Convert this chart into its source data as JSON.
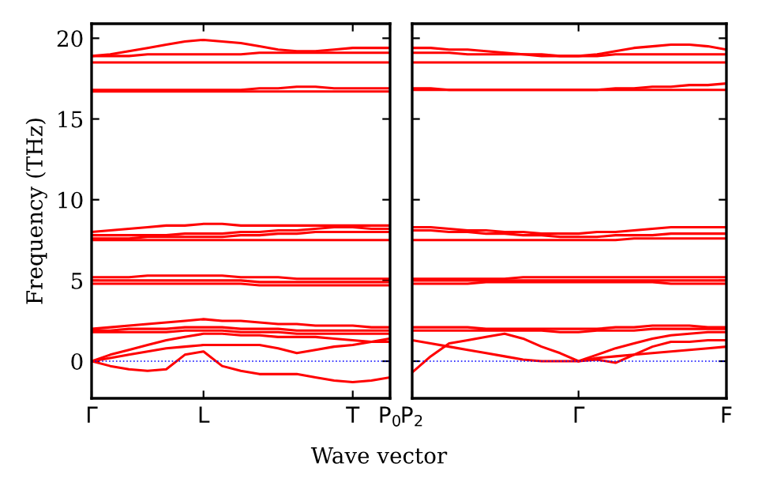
{
  "chart_data": [
    {
      "type": "line",
      "ylabel": "Frequency (THz)",
      "xlabel": "Wave vector",
      "ylim": [
        -2.3,
        20.9
      ],
      "yticks": [
        0,
        5,
        10,
        15,
        20
      ],
      "line_style": "solid",
      "categories": [
        "Γ",
        null,
        null,
        null,
        null,
        null,
        "L",
        null,
        null,
        null,
        null,
        null,
        null,
        null,
        "T",
        null,
        "P$_{0}$"
      ],
      "ref_lines": [
        {
          "axis": "y",
          "value": 0,
          "color": "#0000ff",
          "line_style": "dotted"
        }
      ],
      "series": [
        {
          "color": "#ff0000",
          "values": [
            18.9,
            19.0,
            19.2,
            19.4,
            19.6,
            19.8,
            19.9,
            19.8,
            19.7,
            19.5,
            19.3,
            19.2,
            19.2,
            19.3,
            19.4,
            19.4,
            19.4
          ]
        },
        {
          "color": "#ff0000",
          "values": [
            18.9,
            18.9,
            18.9,
            19.0,
            19.0,
            19.0,
            19.0,
            19.0,
            19.0,
            19.1,
            19.1,
            19.1,
            19.1,
            19.1,
            19.1,
            19.1,
            19.1
          ]
        },
        {
          "color": "#ff0000",
          "values": [
            18.5,
            18.5,
            18.5,
            18.5,
            18.5,
            18.5,
            18.5,
            18.5,
            18.5,
            18.5,
            18.5,
            18.5,
            18.5,
            18.5,
            18.5,
            18.5,
            18.5
          ]
        },
        {
          "color": "#ff0000",
          "values": [
            16.8,
            16.8,
            16.8,
            16.8,
            16.8,
            16.8,
            16.8,
            16.8,
            16.8,
            16.9,
            16.9,
            17.0,
            17.0,
            16.9,
            16.9,
            16.9,
            16.9
          ]
        },
        {
          "color": "#ff0000",
          "values": [
            16.7,
            16.7,
            16.7,
            16.7,
            16.7,
            16.7,
            16.7,
            16.7,
            16.7,
            16.7,
            16.7,
            16.7,
            16.7,
            16.7,
            16.7,
            16.7,
            16.7
          ]
        },
        {
          "color": "#ff0000",
          "values": [
            8.0,
            8.1,
            8.2,
            8.3,
            8.4,
            8.4,
            8.5,
            8.5,
            8.4,
            8.4,
            8.4,
            8.4,
            8.4,
            8.4,
            8.4,
            8.4,
            8.4
          ]
        },
        {
          "color": "#ff0000",
          "values": [
            7.8,
            7.8,
            7.8,
            7.8,
            7.8,
            7.9,
            7.9,
            7.9,
            8.0,
            8.0,
            8.1,
            8.1,
            8.2,
            8.3,
            8.3,
            8.2,
            8.2
          ]
        },
        {
          "color": "#ff0000",
          "values": [
            7.6,
            7.6,
            7.6,
            7.7,
            7.7,
            7.7,
            7.7,
            7.7,
            7.8,
            7.8,
            7.9,
            7.9,
            8.0,
            8.0,
            8.0,
            8.0,
            8.0
          ]
        },
        {
          "color": "#ff0000",
          "values": [
            7.5,
            7.5,
            7.5,
            7.5,
            7.5,
            7.5,
            7.5,
            7.5,
            7.5,
            7.5,
            7.5,
            7.5,
            7.5,
            7.5,
            7.5,
            7.5,
            7.5
          ]
        },
        {
          "color": "#ff0000",
          "values": [
            5.2,
            5.2,
            5.2,
            5.3,
            5.3,
            5.3,
            5.3,
            5.3,
            5.2,
            5.2,
            5.2,
            5.1,
            5.1,
            5.1,
            5.1,
            5.1,
            5.1
          ]
        },
        {
          "color": "#ff0000",
          "values": [
            5.0,
            5.0,
            5.0,
            5.0,
            5.0,
            5.0,
            5.0,
            5.0,
            5.0,
            4.9,
            4.9,
            4.9,
            4.9,
            4.9,
            4.9,
            4.9,
            4.9
          ]
        },
        {
          "color": "#ff0000",
          "values": [
            4.8,
            4.8,
            4.8,
            4.8,
            4.8,
            4.8,
            4.8,
            4.8,
            4.8,
            4.7,
            4.7,
            4.7,
            4.7,
            4.7,
            4.7,
            4.7,
            4.7
          ]
        },
        {
          "color": "#ff0000",
          "values": [
            2.0,
            2.1,
            2.2,
            2.3,
            2.4,
            2.5,
            2.6,
            2.5,
            2.5,
            2.4,
            2.3,
            2.3,
            2.2,
            2.2,
            2.2,
            2.1,
            2.1
          ]
        },
        {
          "color": "#ff0000",
          "values": [
            1.9,
            1.9,
            2.0,
            2.0,
            2.0,
            2.1,
            2.1,
            2.1,
            2.0,
            2.0,
            2.0,
            1.9,
            1.9,
            1.9,
            1.9,
            1.9,
            1.9
          ]
        },
        {
          "color": "#ff0000",
          "values": [
            1.8,
            1.8,
            1.8,
            1.8,
            1.8,
            1.9,
            1.9,
            1.9,
            1.8,
            1.8,
            1.8,
            1.7,
            1.7,
            1.7,
            1.7,
            1.7,
            1.7
          ]
        },
        {
          "color": "#ff0000",
          "values": [
            0,
            0.4,
            0.7,
            1.0,
            1.3,
            1.5,
            1.7,
            1.7,
            1.6,
            1.6,
            1.5,
            1.5,
            1.5,
            1.4,
            1.3,
            1.2,
            1.2
          ]
        },
        {
          "color": "#ff0000",
          "values": [
            0,
            0.2,
            0.4,
            0.6,
            0.8,
            0.9,
            1.0,
            1.0,
            1.0,
            1.0,
            0.8,
            0.5,
            0.7,
            0.9,
            1.0,
            1.2,
            1.4
          ]
        },
        {
          "color": "#ff0000",
          "values": [
            0,
            -0.3,
            -0.5,
            -0.6,
            -0.5,
            0.4,
            0.6,
            -0.3,
            -0.6,
            -0.8,
            -0.8,
            -0.8,
            -1.0,
            -1.2,
            -1.3,
            -1.2,
            -1.0
          ]
        }
      ]
    },
    {
      "type": "line",
      "ylim": [
        -2.3,
        20.9
      ],
      "yticks": [
        {
          "value": 0,
          "label": null
        },
        {
          "value": 5,
          "label": null
        },
        {
          "value": 10,
          "label": null
        },
        {
          "value": 15,
          "label": null
        },
        {
          "value": 20,
          "label": null
        }
      ],
      "tick_labels": "x",
      "line_style": "solid",
      "categories": [
        "P$_{2}$",
        null,
        null,
        null,
        null,
        null,
        null,
        null,
        null,
        "Γ",
        null,
        null,
        null,
        null,
        null,
        null,
        null,
        "F"
      ],
      "ref_lines": [
        {
          "axis": "y",
          "value": 0,
          "color": "#0000ff",
          "line_style": "dotted"
        }
      ],
      "series": [
        {
          "color": "#ff0000",
          "values": [
            19.4,
            19.4,
            19.3,
            19.3,
            19.2,
            19.1,
            19.0,
            19.0,
            18.9,
            18.9,
            19.0,
            19.2,
            19.4,
            19.5,
            19.6,
            19.6,
            19.5,
            19.3
          ]
        },
        {
          "color": "#ff0000",
          "values": [
            19.1,
            19.1,
            19.1,
            19.0,
            19.0,
            19.0,
            19.0,
            18.9,
            18.9,
            18.9,
            18.9,
            19.0,
            19.0,
            19.0,
            19.0,
            19.0,
            19.0,
            19.0
          ]
        },
        {
          "color": "#ff0000",
          "values": [
            18.5,
            18.5,
            18.5,
            18.5,
            18.5,
            18.5,
            18.5,
            18.5,
            18.5,
            18.5,
            18.5,
            18.5,
            18.5,
            18.5,
            18.5,
            18.5,
            18.5,
            18.5
          ]
        },
        {
          "color": "#ff0000",
          "values": [
            16.9,
            16.9,
            16.8,
            16.8,
            16.8,
            16.8,
            16.8,
            16.8,
            16.8,
            16.8,
            16.8,
            16.9,
            16.9,
            17.0,
            17.0,
            17.1,
            17.1,
            17.2
          ]
        },
        {
          "color": "#ff0000",
          "values": [
            16.8,
            16.8,
            16.8,
            16.8,
            16.8,
            16.8,
            16.8,
            16.8,
            16.8,
            16.8,
            16.8,
            16.8,
            16.8,
            16.8,
            16.8,
            16.8,
            16.8,
            16.8
          ]
        },
        {
          "color": "#ff0000",
          "values": [
            8.3,
            8.3,
            8.2,
            8.1,
            8.1,
            8.0,
            8.0,
            7.9,
            7.9,
            7.9,
            8.0,
            8.0,
            8.1,
            8.2,
            8.3,
            8.3,
            8.3,
            8.3
          ]
        },
        {
          "color": "#ff0000",
          "values": [
            8.1,
            8.1,
            8.0,
            8.0,
            7.9,
            7.9,
            7.8,
            7.8,
            7.7,
            7.7,
            7.7,
            7.8,
            7.8,
            7.8,
            7.9,
            7.9,
            7.9,
            7.9
          ]
        },
        {
          "color": "#ff0000",
          "values": [
            7.5,
            7.5,
            7.5,
            7.5,
            7.5,
            7.5,
            7.5,
            7.5,
            7.5,
            7.5,
            7.5,
            7.5,
            7.6,
            7.6,
            7.6,
            7.6,
            7.6,
            7.6
          ]
        },
        {
          "color": "#ff0000",
          "values": [
            5.1,
            5.1,
            5.1,
            5.1,
            5.1,
            5.1,
            5.2,
            5.2,
            5.2,
            5.2,
            5.2,
            5.2,
            5.2,
            5.2,
            5.2,
            5.2,
            5.2,
            5.2
          ]
        },
        {
          "color": "#ff0000",
          "values": [
            5.0,
            5.0,
            5.0,
            5.0,
            5.0,
            5.0,
            5.0,
            5.0,
            5.0,
            5.0,
            5.0,
            5.0,
            5.0,
            5.0,
            5.0,
            5.0,
            5.0,
            5.0
          ]
        },
        {
          "color": "#ff0000",
          "values": [
            4.8,
            4.8,
            4.8,
            4.8,
            4.9,
            4.9,
            4.9,
            4.9,
            4.9,
            4.9,
            4.9,
            4.9,
            4.9,
            4.9,
            4.8,
            4.8,
            4.8,
            4.8
          ]
        },
        {
          "color": "#ff0000",
          "values": [
            2.1,
            2.1,
            2.1,
            2.1,
            2.0,
            2.0,
            2.0,
            2.0,
            2.0,
            2.0,
            2.0,
            2.1,
            2.1,
            2.2,
            2.2,
            2.2,
            2.1,
            2.1
          ]
        },
        {
          "color": "#ff0000",
          "values": [
            1.9,
            1.9,
            1.9,
            1.9,
            1.9,
            1.9,
            1.9,
            1.9,
            1.8,
            1.8,
            1.9,
            1.9,
            1.9,
            2.0,
            2.0,
            2.0,
            2.0,
            2.0
          ]
        },
        {
          "color": "#ff0000",
          "values": [
            1.3,
            1.1,
            0.9,
            0.7,
            0.5,
            0.3,
            0.1,
            0,
            0,
            0,
            0.1,
            -0.1,
            0.4,
            0.9,
            1.2,
            1.2,
            1.3,
            1.3
          ]
        },
        {
          "color": "#ff0000",
          "values": [
            -0.7,
            0.3,
            1.1,
            1.3,
            1.5,
            1.7,
            1.4,
            0.9,
            0.5,
            0,
            0.4,
            0.8,
            1.1,
            1.4,
            1.6,
            1.7,
            1.8,
            1.8
          ]
        },
        {
          "color": "#ff0000",
          "values": [
            null,
            null,
            null,
            null,
            null,
            null,
            null,
            null,
            null,
            0,
            0.2,
            0.3,
            0.4,
            0.5,
            0.6,
            0.7,
            0.8,
            0.9
          ]
        }
      ]
    }
  ]
}
